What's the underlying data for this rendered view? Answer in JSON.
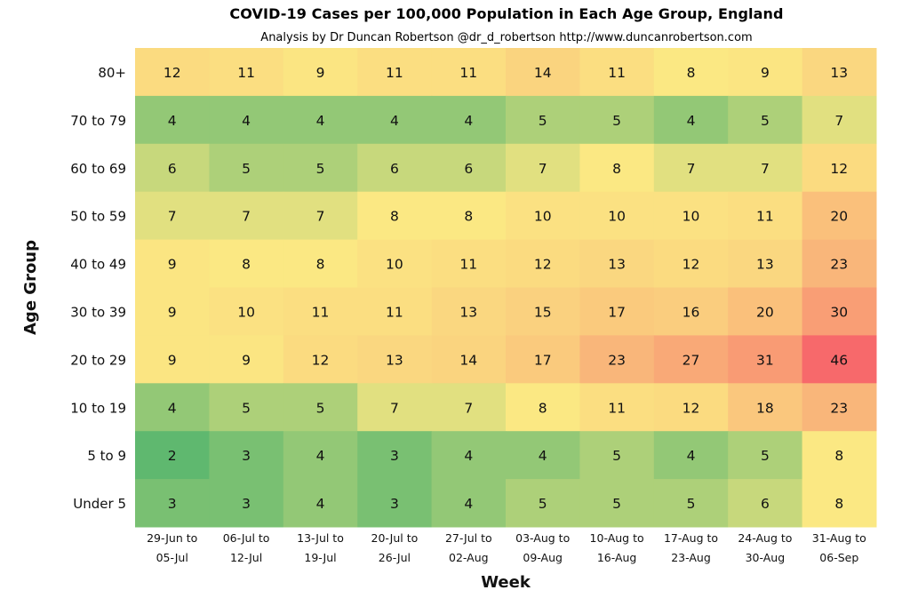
{
  "title": "COVID-19 Cases per 100,000 Population in Each Age Group, England",
  "subtitle": "Analysis by Dr Duncan Robertson @dr_d_robertson http://www.duncanrobertson.com",
  "chart_data": {
    "type": "heatmap",
    "title": "COVID-19 Cases per 100,000 Population in Each Age Group, England",
    "subtitle": "Analysis by Dr Duncan Robertson @dr_d_robertson http://www.duncanrobertson.com",
    "xlabel": "Week",
    "ylabel": "Age Group",
    "columns": [
      [
        "29-Jun to",
        "05-Jul"
      ],
      [
        "06-Jul to",
        "12-Jul"
      ],
      [
        "13-Jul to",
        "19-Jul"
      ],
      [
        "20-Jul to",
        "26-Jul"
      ],
      [
        "27-Jul to",
        "02-Aug"
      ],
      [
        "03-Aug to",
        "09-Aug"
      ],
      [
        "10-Aug to",
        "16-Aug"
      ],
      [
        "17-Aug to",
        "23-Aug"
      ],
      [
        "24-Aug to",
        "30-Aug"
      ],
      [
        "31-Aug to",
        "06-Sep"
      ]
    ],
    "rows": [
      "80+",
      "70 to 79",
      "60 to 69",
      "50 to 59",
      "40 to 49",
      "30 to 39",
      "20 to 29",
      "10 to 19",
      "5 to 9",
      "Under 5"
    ],
    "values": [
      [
        12,
        11,
        9,
        11,
        11,
        14,
        11,
        8,
        9,
        13
      ],
      [
        4,
        4,
        4,
        4,
        4,
        5,
        5,
        4,
        5,
        7
      ],
      [
        6,
        5,
        5,
        6,
        6,
        7,
        8,
        7,
        7,
        12
      ],
      [
        7,
        7,
        7,
        8,
        8,
        10,
        10,
        10,
        11,
        20
      ],
      [
        9,
        8,
        8,
        10,
        11,
        12,
        13,
        12,
        13,
        23
      ],
      [
        9,
        10,
        11,
        11,
        13,
        15,
        17,
        16,
        20,
        30
      ],
      [
        9,
        9,
        12,
        13,
        14,
        17,
        23,
        27,
        31,
        46
      ],
      [
        4,
        5,
        5,
        7,
        7,
        8,
        11,
        12,
        18,
        23
      ],
      [
        2,
        3,
        4,
        3,
        4,
        4,
        5,
        4,
        5,
        8
      ],
      [
        3,
        3,
        4,
        3,
        4,
        5,
        5,
        5,
        6,
        8
      ]
    ],
    "colors": {
      "low": "#5fb86f",
      "mid": "#fbe883",
      "high": "#f7696b"
    },
    "grid": false,
    "legend": "none"
  }
}
